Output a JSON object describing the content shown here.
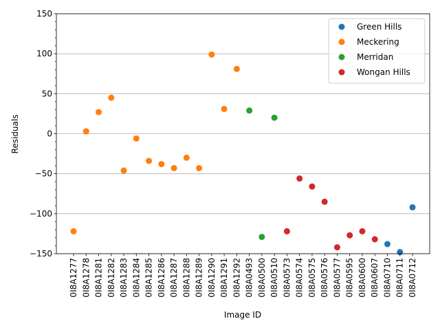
{
  "chart_data": {
    "type": "scatter",
    "title": "",
    "xlabel": "Image ID",
    "ylabel": "Residuals",
    "ylim": [
      -150,
      150
    ],
    "yticks": [
      -150,
      -100,
      -50,
      0,
      50,
      100,
      150
    ],
    "grid": "y-major",
    "legend_position": "top-right",
    "categories": [
      "0I8A1277",
      "0I8A1278",
      "0I8A1281",
      "0I8A1282",
      "0I8A1283",
      "0I8A1284",
      "0I8A1285",
      "0I8A1286",
      "0I8A1287",
      "0I8A1288",
      "0I8A1289",
      "0I8A1290",
      "0I8A1291",
      "0I8A1292",
      "0I8A0493",
      "0I8A0500",
      "0I8A0510",
      "0I8A0573",
      "0I8A0574",
      "0I8A0575",
      "0I8A0576",
      "0I8A0577",
      "0I8A0595",
      "0I8A0600",
      "0I8A0607",
      "0I8A0710",
      "0I8A0711",
      "0I8A0712"
    ],
    "series": [
      {
        "name": "Green Hills",
        "color": "#1f77b4",
        "points": [
          {
            "x": "0I8A0710",
            "y": -138
          },
          {
            "x": "0I8A0711",
            "y": -148
          },
          {
            "x": "0I8A0712",
            "y": -92
          }
        ]
      },
      {
        "name": "Meckering",
        "color": "#ff7f0e",
        "points": [
          {
            "x": "0I8A1277",
            "y": -122
          },
          {
            "x": "0I8A1278",
            "y": 3
          },
          {
            "x": "0I8A1281",
            "y": 27
          },
          {
            "x": "0I8A1282",
            "y": 45
          },
          {
            "x": "0I8A1283",
            "y": -46
          },
          {
            "x": "0I8A1284",
            "y": -6
          },
          {
            "x": "0I8A1285",
            "y": -34
          },
          {
            "x": "0I8A1286",
            "y": -38
          },
          {
            "x": "0I8A1287",
            "y": -43
          },
          {
            "x": "0I8A1288",
            "y": -30
          },
          {
            "x": "0I8A1289",
            "y": -43
          },
          {
            "x": "0I8A1290",
            "y": 99
          },
          {
            "x": "0I8A1291",
            "y": 31
          },
          {
            "x": "0I8A1292",
            "y": 81
          }
        ]
      },
      {
        "name": "Merridan",
        "color": "#2ca02c",
        "points": [
          {
            "x": "0I8A0493",
            "y": 29
          },
          {
            "x": "0I8A0500",
            "y": -129
          },
          {
            "x": "0I8A0510",
            "y": 20
          }
        ]
      },
      {
        "name": "Wongan Hills",
        "color": "#d62728",
        "points": [
          {
            "x": "0I8A0573",
            "y": -122
          },
          {
            "x": "0I8A0574",
            "y": -56
          },
          {
            "x": "0I8A0575",
            "y": -66
          },
          {
            "x": "0I8A0576",
            "y": -85
          },
          {
            "x": "0I8A0577",
            "y": -142
          },
          {
            "x": "0I8A0595",
            "y": -127
          },
          {
            "x": "0I8A0600",
            "y": -122
          },
          {
            "x": "0I8A0607",
            "y": -132
          }
        ]
      }
    ]
  }
}
